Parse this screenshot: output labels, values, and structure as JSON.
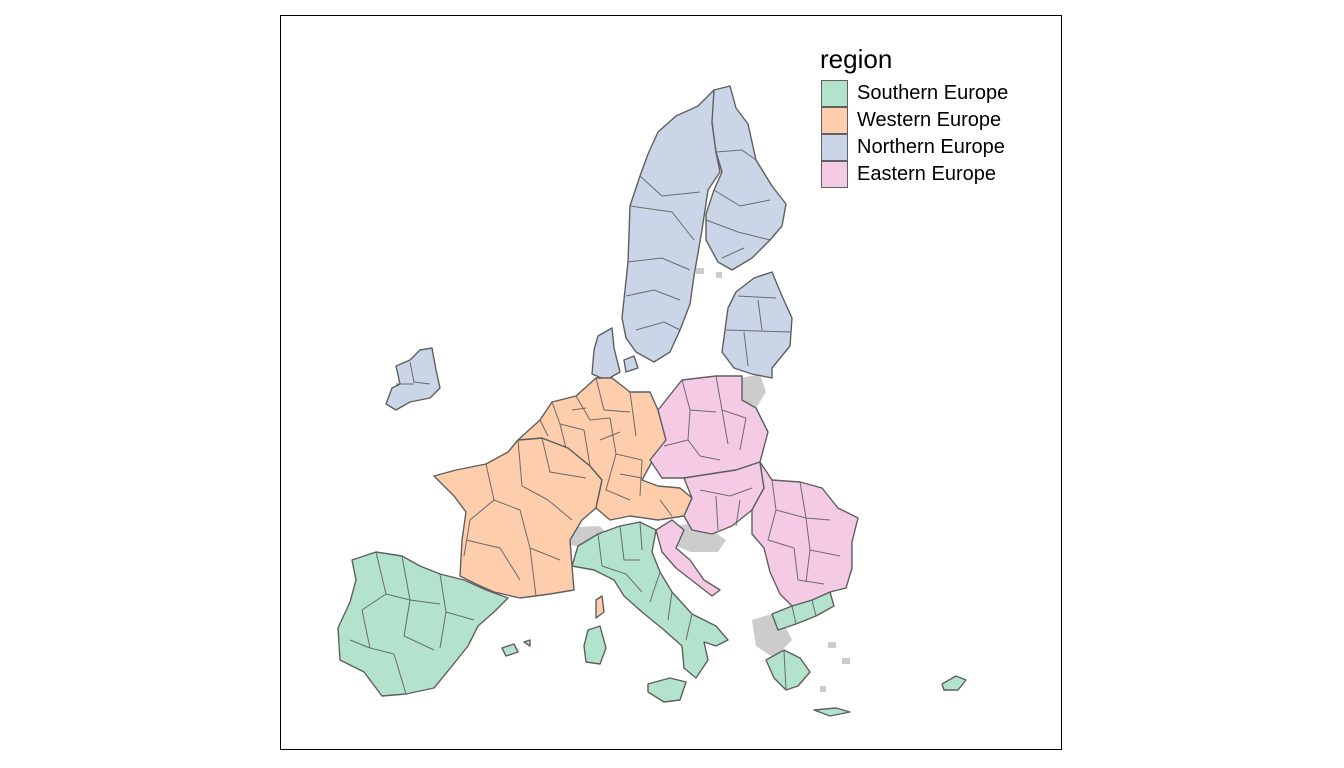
{
  "legend": {
    "title": "region",
    "items": [
      {
        "label": "Southern Europe",
        "color": "#b3e2cd"
      },
      {
        "label": "Western Europe",
        "color": "#fdcdac"
      },
      {
        "label": "Northern Europe",
        "color": "#cbd5e8"
      },
      {
        "label": "Eastern Europe",
        "color": "#f4cae4"
      }
    ]
  },
  "colors": {
    "missing": "#cccccc",
    "border": "#5f5f5f",
    "frame": "#000000"
  }
}
